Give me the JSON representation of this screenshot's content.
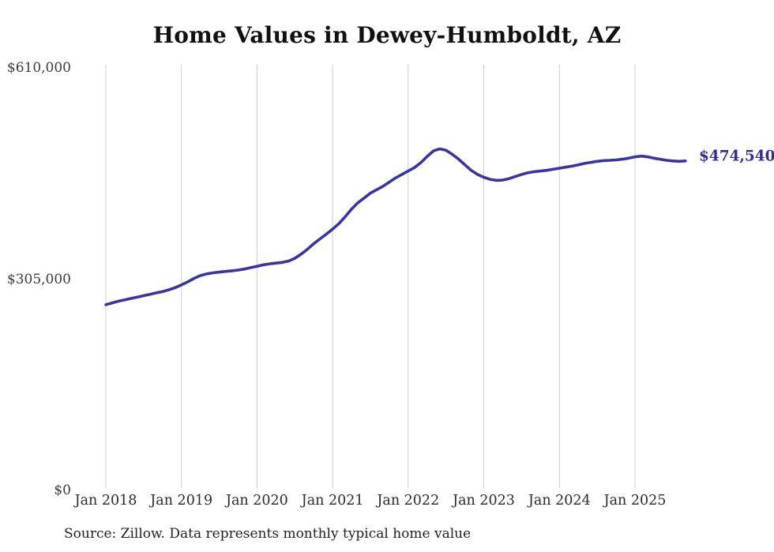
{
  "chart_data": {
    "type": "line",
    "title": "Home Values in Dewey-Humboldt, AZ",
    "source_note": "Source: Zillow. Data represents monthly typical home value",
    "end_label": "$474,540",
    "latest_value": 474540,
    "line_color": "#3a34a0",
    "end_label_color": "#322b9d",
    "gridline_color": "#cccccc",
    "grid": "vertical-only",
    "legend": "none",
    "ylim": [
      0,
      610000
    ],
    "y_ticks": [
      "$0",
      "$305,000",
      "$610,000"
    ],
    "y_tick_values": [
      0,
      305000,
      610000
    ],
    "x_ticks": [
      "Jan 2018",
      "Jan 2019",
      "Jan 2020",
      "Jan 2021",
      "Jan 2022",
      "Jan 2023",
      "Jan 2024",
      "Jan 2025"
    ],
    "frequency": "monthly",
    "start_month": "2018-01",
    "end_month": "2025-09",
    "series_name": "Typical home value",
    "values": [
      267000,
      269500,
      272000,
      274000,
      276000,
      278000,
      280000,
      282000,
      284000,
      286000,
      288500,
      291500,
      295500,
      300000,
      305000,
      309000,
      311500,
      313000,
      314000,
      315000,
      316000,
      317000,
      318500,
      320500,
      322500,
      324500,
      326000,
      327000,
      328000,
      330000,
      334000,
      340000,
      347000,
      355000,
      362000,
      369000,
      376000,
      384000,
      394000,
      405000,
      414000,
      421000,
      428000,
      433000,
      438000,
      444000,
      450000,
      455000,
      460000,
      465000,
      472000,
      481000,
      489000,
      492000,
      490000,
      484000,
      477000,
      469000,
      461000,
      455000,
      451000,
      448000,
      446500,
      447000,
      449000,
      452000,
      455000,
      457500,
      459000,
      460000,
      461000,
      462500,
      464000,
      465500,
      467000,
      469000,
      471000,
      472500,
      474000,
      475000,
      475500,
      476000,
      477000,
      478500,
      480500,
      481500,
      480500,
      478500,
      477000,
      475500,
      474500,
      474000,
      474540
    ]
  }
}
